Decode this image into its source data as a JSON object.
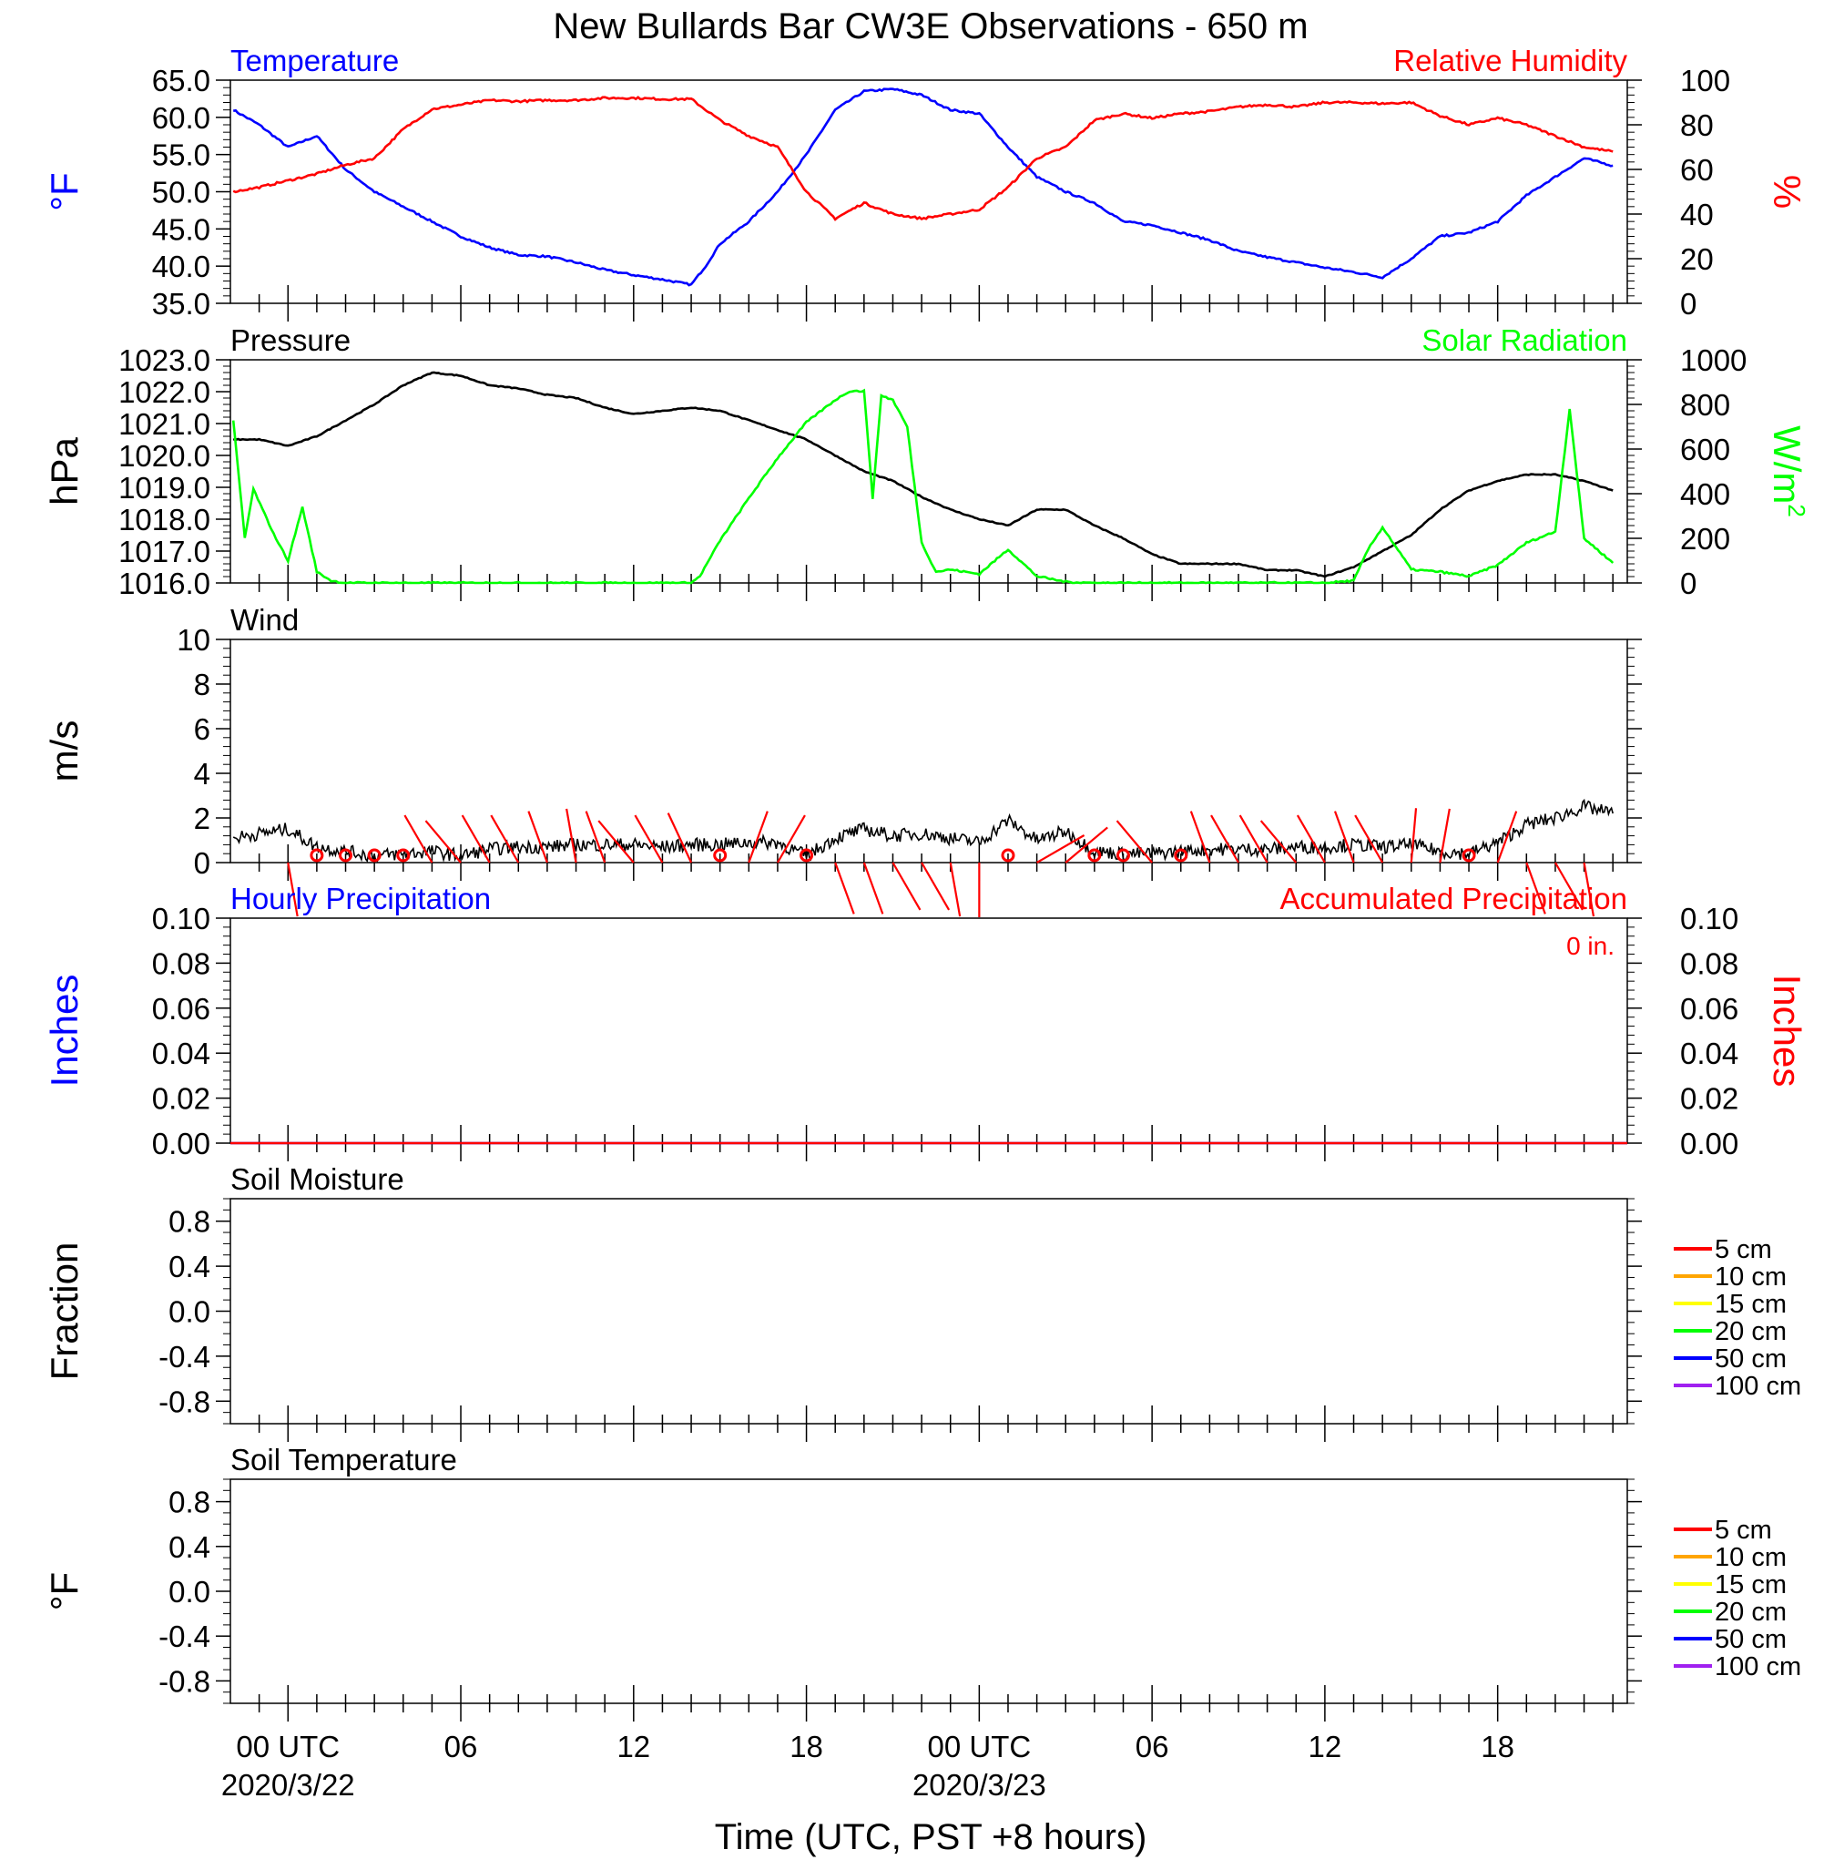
{
  "title": "New Bullards Bar CW3E Observations - 650 m",
  "time_axis": {
    "label": "Time (UTC, PST +8 hours)",
    "range_hours": [
      -2,
      46.5
    ],
    "major_ticks": [
      {
        "hour": 0,
        "label": "00 UTC",
        "date": "2020/3/22"
      },
      {
        "hour": 6,
        "label": "06",
        "date": ""
      },
      {
        "hour": 12,
        "label": "12",
        "date": ""
      },
      {
        "hour": 18,
        "label": "18",
        "date": ""
      },
      {
        "hour": 24,
        "label": "00 UTC",
        "date": "2020/3/23"
      },
      {
        "hour": 30,
        "label": "06",
        "date": ""
      },
      {
        "hour": 36,
        "label": "12",
        "date": ""
      },
      {
        "hour": 42,
        "label": "18",
        "date": ""
      }
    ]
  },
  "colors": {
    "temperature": "#0000ff",
    "humidity": "#ff0000",
    "pressure": "#000000",
    "solar": "#00ff00",
    "wind": "#000000",
    "wind_barb": "#ff0000",
    "precip_hourly": "#0000ff",
    "precip_accum": "#ff0000"
  },
  "chart_data": [
    {
      "type": "line",
      "title_left": "Temperature",
      "title_right": "Relative Humidity",
      "ylabel_left": "°F",
      "ylabel_right": "%",
      "ylim_left": [
        35.0,
        65.0
      ],
      "yticks_left": [
        "35.0",
        "40.0",
        "45.0",
        "50.0",
        "55.0",
        "60.0",
        "65.0"
      ],
      "ylim_right": [
        0,
        100
      ],
      "yticks_right": [
        "0",
        "20",
        "40",
        "60",
        "80",
        "100"
      ],
      "series": [
        {
          "name": "Temperature",
          "axis": "left",
          "x": [
            -1.9,
            -1,
            0,
            1,
            2,
            3,
            4,
            5,
            6,
            7,
            8,
            9,
            10,
            11,
            12,
            13,
            14,
            14.5,
            15,
            16,
            17,
            18,
            19,
            20,
            21,
            22,
            23,
            24,
            25,
            26,
            27,
            28,
            29,
            30,
            31,
            32,
            33,
            34,
            35,
            36,
            37,
            38,
            39,
            40,
            41,
            42,
            43,
            44,
            45,
            46
          ],
          "y": [
            61,
            59,
            56,
            57.5,
            53,
            50,
            48,
            46,
            44,
            42.5,
            41.5,
            41.3,
            40.5,
            39.5,
            38.8,
            38.2,
            37.5,
            40,
            43,
            46,
            50,
            55,
            61,
            63.5,
            63.8,
            63,
            61,
            60.5,
            56,
            52,
            50,
            48.5,
            46,
            45.5,
            44.5,
            43.5,
            42,
            41.2,
            40.5,
            39.8,
            39.2,
            38.5,
            41,
            44,
            44.5,
            46,
            49.5,
            52,
            54.5,
            53.5
          ]
        },
        {
          "name": "Relative Humidity",
          "axis": "right",
          "x": [
            -1.9,
            -1,
            0,
            1,
            2,
            3,
            4,
            5,
            6,
            7,
            8,
            9,
            10,
            11,
            12,
            13,
            14,
            15,
            16,
            17,
            18,
            19,
            20,
            21,
            22,
            23,
            24,
            25,
            26,
            27,
            28,
            29,
            30,
            31,
            32,
            33,
            34,
            35,
            36,
            37,
            38,
            39,
            40,
            41,
            42,
            43,
            44,
            45,
            46
          ],
          "y": [
            50,
            52,
            55,
            58,
            62,
            65,
            78,
            87,
            89,
            91,
            90.5,
            91,
            91,
            92,
            92,
            91.5,
            91.5,
            82,
            75,
            70,
            50,
            38,
            45,
            40,
            38,
            40,
            42,
            52,
            65,
            70,
            82,
            85,
            83,
            85,
            86,
            88,
            89,
            88,
            90,
            90,
            89.5,
            90,
            84,
            80,
            83,
            80,
            75,
            70,
            68
          ]
        }
      ]
    },
    {
      "type": "line",
      "title_left": "Pressure",
      "title_right": "Solar Radiation",
      "ylabel_left": "hPa",
      "ylabel_right": "W/m",
      "ylabel_right_sup": "2",
      "ylim_left": [
        1016.0,
        1023.0
      ],
      "yticks_left": [
        "1016.0",
        "1017.0",
        "1018.0",
        "1019.0",
        "1020.0",
        "1021.0",
        "1022.0",
        "1023.0"
      ],
      "ylim_right": [
        0,
        1000
      ],
      "yticks_right": [
        "0",
        "200",
        "400",
        "600",
        "800",
        "1000"
      ],
      "series": [
        {
          "name": "Pressure",
          "axis": "left",
          "x": [
            -1.9,
            -1,
            0,
            1,
            2,
            3,
            4,
            5,
            6,
            7,
            8,
            9,
            10,
            11,
            12,
            13,
            14,
            15,
            16,
            17,
            18,
            19,
            20,
            21,
            22,
            23,
            24,
            25,
            26,
            27,
            28,
            29,
            30,
            31,
            32,
            33,
            34,
            35,
            36,
            37,
            38,
            39,
            40,
            41,
            42,
            43,
            44,
            45,
            46
          ],
          "y": [
            1020.5,
            1020.5,
            1020.3,
            1020.6,
            1021.1,
            1021.6,
            1022.2,
            1022.6,
            1022.5,
            1022.2,
            1022.1,
            1021.9,
            1021.8,
            1021.5,
            1021.3,
            1021.4,
            1021.5,
            1021.4,
            1021.1,
            1020.8,
            1020.5,
            1020.0,
            1019.5,
            1019.2,
            1018.7,
            1018.3,
            1018.0,
            1017.8,
            1018.3,
            1018.3,
            1017.8,
            1017.4,
            1016.9,
            1016.6,
            1016.6,
            1016.6,
            1016.4,
            1016.4,
            1016.2,
            1016.5,
            1017.0,
            1017.5,
            1018.3,
            1018.9,
            1019.2,
            1019.4,
            1019.4,
            1019.2,
            1018.9
          ]
        },
        {
          "name": "Solar Radiation",
          "axis": "right",
          "x": [
            -1.9,
            -1.5,
            -1.2,
            -0.5,
            0,
            0.5,
            1,
            1.5,
            2,
            14,
            14.3,
            15,
            16,
            17,
            18,
            19,
            19.5,
            20,
            20.3,
            20.6,
            21,
            21.5,
            22,
            22.5,
            23,
            24,
            25,
            26,
            27,
            28,
            29,
            36,
            37,
            37.5,
            38,
            39,
            40,
            41,
            42,
            43,
            44,
            44.5,
            45,
            46
          ],
          "y": [
            730,
            200,
            420,
            220,
            100,
            340,
            50,
            10,
            0,
            0,
            30,
            190,
            380,
            560,
            720,
            820,
            860,
            860,
            380,
            840,
            820,
            700,
            180,
            50,
            60,
            40,
            150,
            30,
            5,
            0,
            0,
            0,
            10,
            150,
            250,
            60,
            50,
            30,
            80,
            180,
            230,
            780,
            200,
            90
          ]
        }
      ]
    },
    {
      "type": "line",
      "title_left": "Wind",
      "ylabel_left": "m/s",
      "ylim_left": [
        0,
        10
      ],
      "yticks_left": [
        "0",
        "2",
        "4",
        "6",
        "8",
        "10"
      ],
      "series": [
        {
          "name": "Wind",
          "axis": "left",
          "x": [
            -1.9,
            -1,
            0,
            1,
            2,
            3,
            4,
            5,
            6,
            7,
            8,
            9,
            10,
            11,
            12,
            13,
            14,
            15,
            16,
            17,
            18,
            19,
            20,
            21,
            22,
            23,
            24,
            25,
            26,
            27,
            28,
            29,
            30,
            31,
            32,
            33,
            34,
            35,
            36,
            37,
            38,
            39,
            40,
            41,
            42,
            43,
            44,
            45,
            46
          ],
          "y": [
            1.1,
            1.3,
            1.5,
            0.7,
            0.5,
            0.3,
            0.4,
            0.5,
            0.3,
            0.6,
            0.7,
            0.7,
            0.8,
            0.8,
            0.8,
            0.7,
            0.8,
            0.8,
            0.9,
            0.9,
            0.3,
            1.1,
            1.5,
            1.2,
            1.3,
            1.1,
            0.9,
            1.9,
            1.0,
            1.4,
            0.5,
            0.4,
            0.4,
            0.5,
            0.6,
            0.6,
            0.6,
            0.7,
            0.7,
            0.8,
            0.7,
            0.8,
            0.5,
            0.4,
            0.9,
            1.7,
            2.0,
            2.5,
            2.2
          ]
        }
      ],
      "calm_hours": [
        1,
        2,
        3,
        4,
        15,
        18,
        25,
        28,
        29,
        31,
        41
      ],
      "barbs": [
        {
          "hour": 0,
          "dir": 170
        },
        {
          "hour": 5,
          "dir": 330
        },
        {
          "hour": 6,
          "dir": 320
        },
        {
          "hour": 7,
          "dir": 330
        },
        {
          "hour": 8,
          "dir": 330
        },
        {
          "hour": 9,
          "dir": 340
        },
        {
          "hour": 10,
          "dir": 350
        },
        {
          "hour": 11,
          "dir": 340
        },
        {
          "hour": 12,
          "dir": 320
        },
        {
          "hour": 13,
          "dir": 330
        },
        {
          "hour": 14,
          "dir": 335
        },
        {
          "hour": 16,
          "dir": 20
        },
        {
          "hour": 17,
          "dir": 30
        },
        {
          "hour": 19,
          "dir": 160
        },
        {
          "hour": 20,
          "dir": 160
        },
        {
          "hour": 21,
          "dir": 150
        },
        {
          "hour": 22,
          "dir": 150
        },
        {
          "hour": 23,
          "dir": 170
        },
        {
          "hour": 24,
          "dir": 180
        },
        {
          "hour": 26,
          "dir": 60
        },
        {
          "hour": 27,
          "dir": 50
        },
        {
          "hour": 30,
          "dir": 320
        },
        {
          "hour": 32,
          "dir": 340
        },
        {
          "hour": 33,
          "dir": 330
        },
        {
          "hour": 34,
          "dir": 330
        },
        {
          "hour": 35,
          "dir": 320
        },
        {
          "hour": 36,
          "dir": 330
        },
        {
          "hour": 37,
          "dir": 340
        },
        {
          "hour": 38,
          "dir": 330
        },
        {
          "hour": 39,
          "dir": 5
        },
        {
          "hour": 40,
          "dir": 10
        },
        {
          "hour": 42,
          "dir": 20
        },
        {
          "hour": 43,
          "dir": 160
        },
        {
          "hour": 44,
          "dir": 150
        },
        {
          "hour": 45,
          "dir": 170
        }
      ]
    },
    {
      "type": "line",
      "title_left": "Hourly Precipitation",
      "title_right": "Accumulated Precipitation",
      "annotation": "0 in.",
      "ylabel_left": "Inches",
      "ylabel_right": "Inches",
      "ylim_left": [
        0,
        0.1
      ],
      "yticks_left": [
        "0.00",
        "0.02",
        "0.04",
        "0.06",
        "0.08",
        "0.10"
      ],
      "ylim_right": [
        0,
        0.1
      ],
      "yticks_right": [
        "0.00",
        "0.02",
        "0.04",
        "0.06",
        "0.08",
        "0.10"
      ],
      "series": [
        {
          "name": "Hourly Precipitation",
          "axis": "left",
          "x": [
            -2,
            46.5
          ],
          "y": [
            0,
            0
          ]
        },
        {
          "name": "Accumulated Precipitation",
          "axis": "right",
          "x": [
            -2,
            46.5
          ],
          "y": [
            0,
            0
          ]
        }
      ]
    },
    {
      "type": "line",
      "title_left": "Soil Moisture",
      "ylabel_left": "Fraction",
      "ylim_left": [
        -1.0,
        1.0
      ],
      "yticks_left": [
        "-0.8",
        "-0.4",
        "0.0",
        "0.4",
        "0.8"
      ],
      "legend": [
        {
          "name": "5 cm",
          "color": "#ff0000"
        },
        {
          "name": "10 cm",
          "color": "#ffa500"
        },
        {
          "name": "15 cm",
          "color": "#ffff00"
        },
        {
          "name": "20 cm",
          "color": "#00ff00"
        },
        {
          "name": "50 cm",
          "color": "#0000ff"
        },
        {
          "name": "100 cm",
          "color": "#a020f0"
        }
      ],
      "series": []
    },
    {
      "type": "line",
      "title_left": "Soil Temperature",
      "ylabel_left": "°F",
      "ylim_left": [
        -1.0,
        1.0
      ],
      "yticks_left": [
        "-0.8",
        "-0.4",
        "0.0",
        "0.4",
        "0.8"
      ],
      "legend": [
        {
          "name": "5 cm",
          "color": "#ff0000"
        },
        {
          "name": "10 cm",
          "color": "#ffa500"
        },
        {
          "name": "15 cm",
          "color": "#ffff00"
        },
        {
          "name": "20 cm",
          "color": "#00ff00"
        },
        {
          "name": "50 cm",
          "color": "#0000ff"
        },
        {
          "name": "100 cm",
          "color": "#a020f0"
        }
      ],
      "series": []
    }
  ]
}
